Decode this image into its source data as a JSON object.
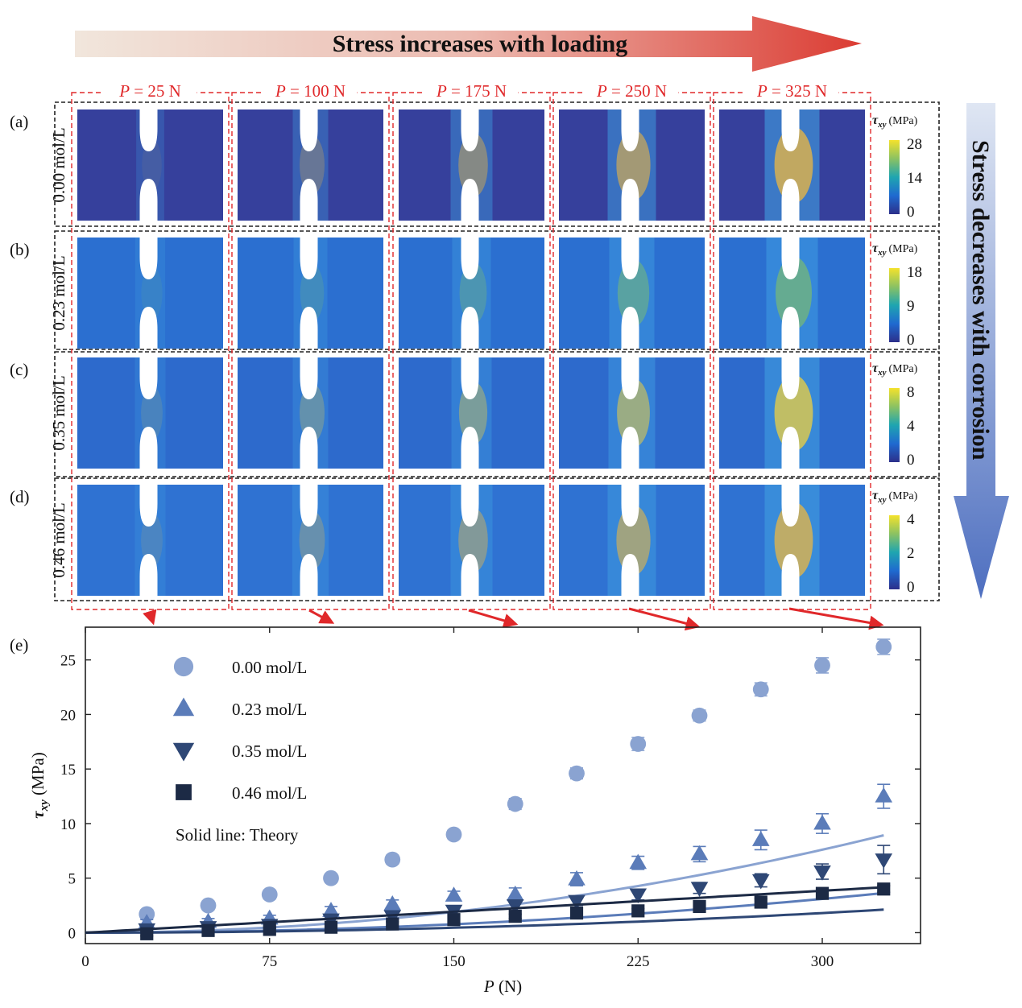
{
  "banner_top": {
    "text": "Stress increases with loading"
  },
  "banner_side": {
    "text": "Stress decreases with corrosion"
  },
  "columns": [
    {
      "label_p": "P",
      "label_rest": " = 25 N"
    },
    {
      "label_p": "P",
      "label_rest": " = 100 N"
    },
    {
      "label_p": "P",
      "label_rest": " = 175 N"
    },
    {
      "label_p": "P",
      "label_rest": " = 250 N"
    },
    {
      "label_p": "P",
      "label_rest": " = 325 N"
    }
  ],
  "rows": [
    {
      "letter": "(a)",
      "conc": "0.00 mol/L",
      "cb_unit": "(MPa)",
      "cb_ticks": [
        "28",
        "14",
        "0"
      ]
    },
    {
      "letter": "(b)",
      "conc": "0.23 mol/L",
      "cb_unit": "(MPa)",
      "cb_ticks": [
        "18",
        "9",
        "0"
      ]
    },
    {
      "letter": "(c)",
      "conc": "0.35 mol/L",
      "cb_unit": "(MPa)",
      "cb_ticks": [
        "8",
        "4",
        "0"
      ]
    },
    {
      "letter": "(d)",
      "conc": "0.46 mol/L",
      "cb_unit": "(MPa)",
      "cb_ticks": [
        "4",
        "2",
        "0"
      ]
    }
  ],
  "chart_data": {
    "type": "scatter",
    "panel_label": "(e)",
    "xlabel_sym": "P",
    "xlabel_unit": " (N)",
    "ylabel_sym": "τ",
    "ylabel_sub": "xy",
    "ylabel_unit": " (MPa)",
    "xlim": [
      0,
      340
    ],
    "ylim": [
      -1,
      28
    ],
    "xticks": [
      0,
      75,
      150,
      225,
      300
    ],
    "yticks": [
      0,
      5,
      10,
      15,
      20,
      25
    ],
    "legend_note": "Solid line: Theory",
    "legend_position": "top-left",
    "x": [
      25,
      50,
      75,
      100,
      125,
      150,
      175,
      200,
      225,
      250,
      275,
      300,
      325
    ],
    "series": [
      {
        "name": "0.00 mol/L",
        "marker": "circle",
        "color": "#8aa3d1",
        "values": [
          1.7,
          2.5,
          3.5,
          5.0,
          6.7,
          9.0,
          11.8,
          14.6,
          17.3,
          19.9,
          22.3,
          24.5,
          26.2
        ],
        "errors": [
          0.4,
          0.4,
          0.4,
          0.4,
          0.4,
          0.4,
          0.5,
          0.5,
          0.6,
          0.5,
          0.6,
          0.7,
          0.7
        ],
        "theory": {
          "a": 8.45e-05,
          "b": 2
        }
      },
      {
        "name": "0.23 mol/L",
        "marker": "triangle-up",
        "color": "#5b7cb9",
        "values": [
          0.9,
          1.0,
          1.3,
          2.0,
          2.6,
          3.4,
          3.5,
          4.9,
          6.4,
          7.2,
          8.5,
          10.0,
          12.5
        ],
        "errors": [
          0.3,
          0.3,
          0.3,
          0.4,
          0.4,
          0.4,
          0.6,
          0.6,
          0.6,
          0.7,
          0.9,
          0.9,
          1.1
        ],
        "theory": {
          "a": 3.44e-05,
          "b": 2
        }
      },
      {
        "name": "0.35 mol/L",
        "marker": "triangle-down",
        "color": "#2e4775",
        "values": [
          0.3,
          0.5,
          0.7,
          1.2,
          1.5,
          2.0,
          2.5,
          2.9,
          3.5,
          4.1,
          4.8,
          5.6,
          6.7
        ],
        "errors": [
          0.2,
          0.3,
          0.3,
          0.3,
          0.3,
          0.3,
          0.3,
          0.4,
          0.5,
          0.5,
          0.6,
          0.7,
          1.3
        ],
        "theory": {
          "a": 2e-05,
          "b": 2
        }
      },
      {
        "name": "0.46 mol/L",
        "marker": "square",
        "color": "#1c2a45",
        "values": [
          -0.1,
          0.2,
          0.3,
          0.5,
          0.8,
          1.2,
          1.5,
          1.8,
          2.0,
          2.4,
          2.8,
          3.6,
          4.0
        ],
        "errors": [
          0.2,
          0.2,
          0.2,
          0.2,
          0.2,
          0.2,
          0.2,
          0.2,
          0.2,
          0.3,
          0.3,
          0.3,
          0.3
        ],
        "theory": {
          "a": 0.0128,
          "b": 1
        }
      }
    ]
  }
}
